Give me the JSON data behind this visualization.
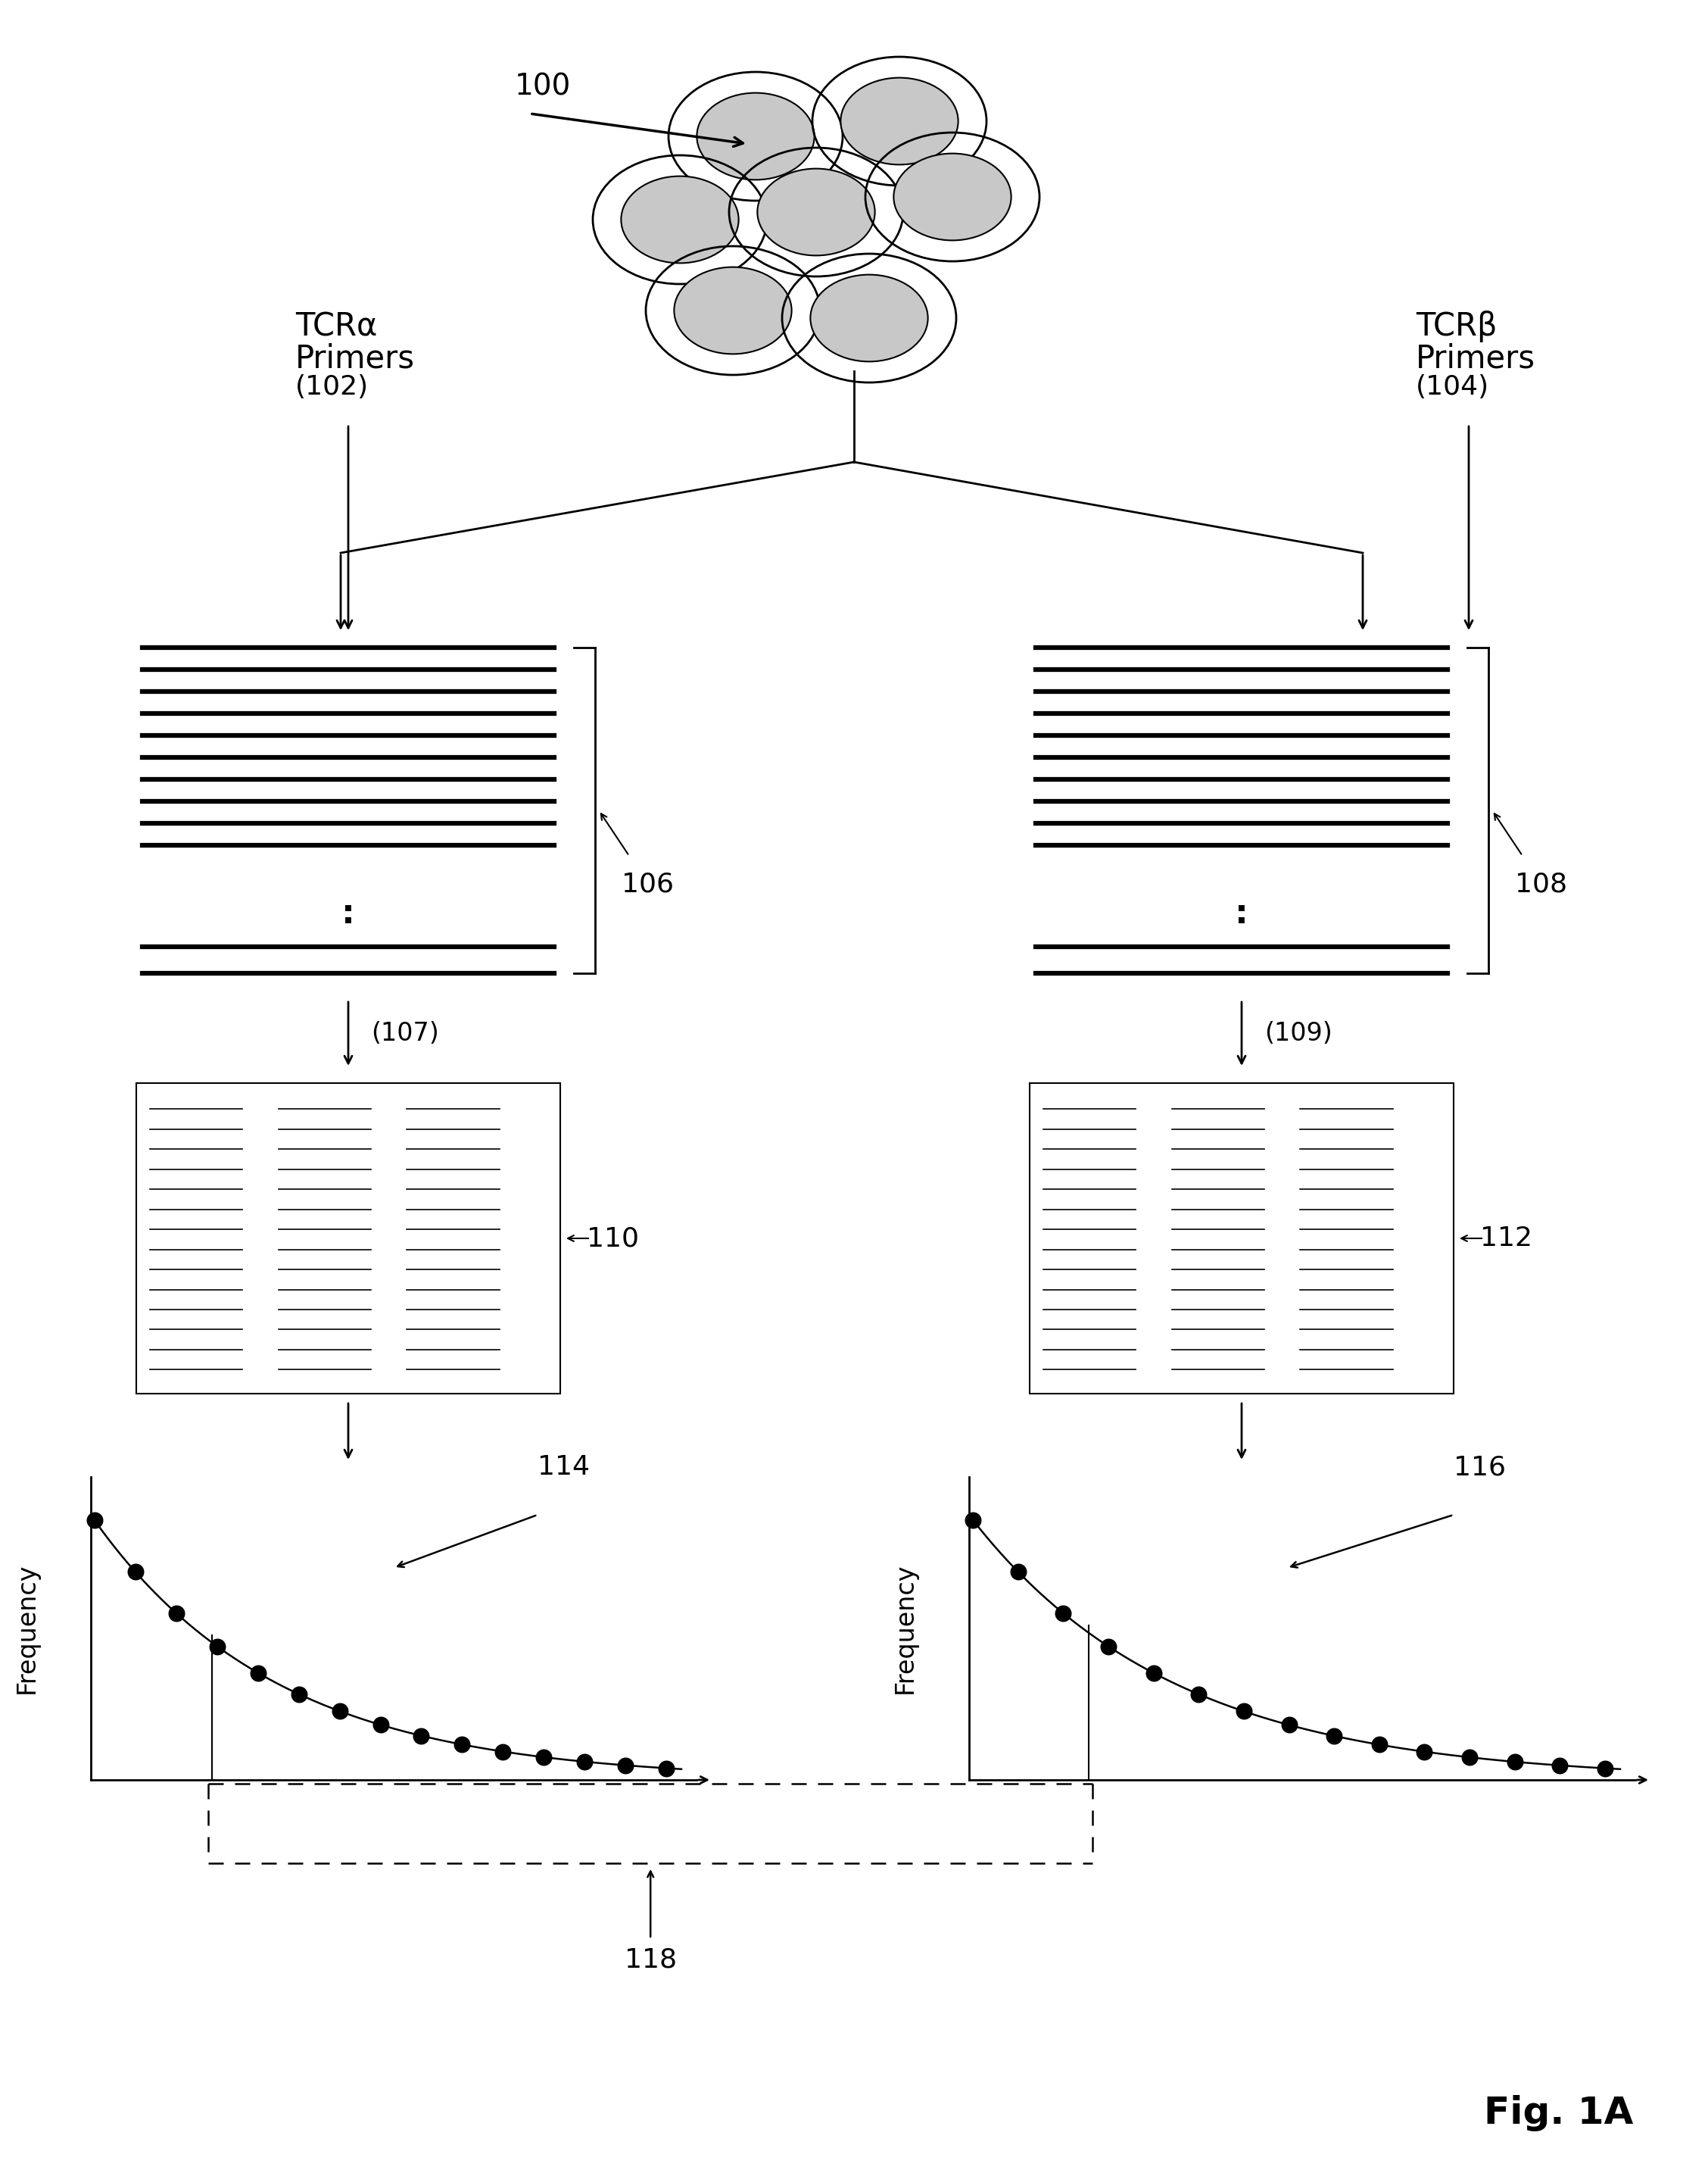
{
  "background_color": "#ffffff",
  "text_color": "#000000",
  "label_100": "100",
  "label_106": "106",
  "label_108": "108",
  "label_107": "(107)",
  "label_109": "(109)",
  "label_110": "110",
  "label_112": "112",
  "label_114": "114",
  "label_116": "116",
  "label_118": "118",
  "label_freq": "Frequency",
  "fig_label": "Fig. 1A",
  "tcra_line1": "TCRα",
  "tcra_line2": "Primers",
  "tcra_line3": "(102)",
  "tcrb_line1": "TCRβ",
  "tcrb_line2": "Primers",
  "tcrb_line3": "(104)"
}
